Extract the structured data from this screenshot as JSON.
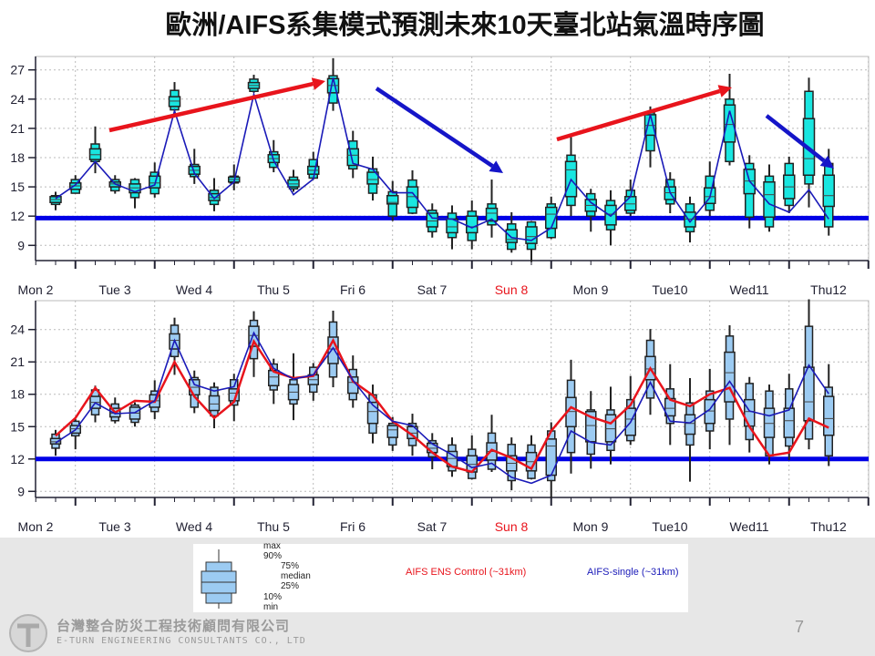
{
  "title": "歐洲/AIFS系集模式預測未來10天臺北站氣溫時序圖",
  "colors": {
    "ens_box_top": "#19e6e0",
    "ens_box_bottom": "#9ccbf2",
    "control": "#e8141c",
    "single": "#1a1ab8",
    "reference": "#0000e6",
    "weekend_label": "#e8141c"
  },
  "chart_data": [
    {
      "type": "boxplot",
      "title": "",
      "x_tick_labels": [
        "Mon 2",
        "Tue 3",
        "Wed 4",
        "Thu 5",
        "Fri 6",
        "Sat 7",
        "Sun 8",
        "Mon 9",
        "Tue10",
        "Wed11",
        "Thu12"
      ],
      "x_step": "6-hourly",
      "y_ticks": [
        9,
        12,
        15,
        18,
        21,
        24,
        27
      ],
      "ylim": [
        7.5,
        28.5
      ],
      "grid": true,
      "reference_line": 11.8,
      "box_order": [
        "min",
        "p10",
        "p25",
        "median",
        "p75",
        "p90",
        "max"
      ],
      "boxes": [
        [
          12.6,
          13.2,
          13.4,
          13.7,
          14.0,
          14.1,
          14.5
        ],
        [
          14.3,
          14.35,
          14.75,
          15.1,
          15.4,
          15.75,
          16.2
        ],
        [
          16.4,
          17.6,
          17.8,
          18.3,
          18.9,
          19.4,
          21.2
        ],
        [
          14.3,
          14.6,
          15.0,
          15.3,
          15.5,
          15.75,
          16.2
        ],
        [
          12.8,
          13.9,
          14.4,
          14.9,
          15.3,
          15.75,
          15.9
        ],
        [
          13.9,
          14.3,
          14.9,
          15.4,
          16.1,
          16.5,
          17.5
        ],
        [
          22.8,
          22.9,
          23.25,
          23.8,
          24.25,
          24.9,
          25.75
        ],
        [
          15.3,
          16.05,
          16.3,
          16.7,
          17.1,
          17.3,
          18.9
        ],
        [
          12.5,
          13.2,
          13.6,
          13.9,
          14.3,
          14.65,
          15.9
        ],
        [
          14.65,
          15.4,
          15.5,
          15.75,
          16.0,
          16.1,
          17.3
        ],
        [
          24.65,
          24.8,
          25.1,
          25.4,
          25.7,
          26.05,
          26.5
        ],
        [
          16.5,
          17.0,
          17.5,
          17.9,
          18.3,
          18.6,
          19.8
        ],
        [
          14.5,
          14.8,
          15.0,
          15.3,
          15.7,
          16.0,
          16.75
        ],
        [
          15.75,
          15.9,
          16.3,
          16.7,
          17.1,
          17.8,
          18.6
        ],
        [
          22.8,
          23.6,
          24.65,
          25.4,
          26.1,
          26.4,
          28.2
        ],
        [
          15.9,
          16.85,
          17.2,
          18.25,
          18.9,
          19.7,
          20.75
        ],
        [
          13.6,
          14.35,
          15.3,
          15.75,
          16.5,
          16.85,
          18.1
        ],
        [
          11.5,
          12.0,
          13.25,
          13.4,
          14.1,
          14.5,
          15.6
        ],
        [
          12.2,
          12.3,
          12.9,
          14.0,
          15.0,
          15.7,
          16.7
        ],
        [
          9.8,
          10.4,
          10.9,
          11.5,
          12.3,
          12.6,
          13.3
        ],
        [
          8.6,
          9.8,
          10.3,
          10.9,
          11.7,
          12.3,
          13.1
        ],
        [
          8.6,
          9.5,
          10.3,
          10.9,
          12.0,
          12.5,
          13.6
        ],
        [
          9.8,
          11.1,
          11.5,
          12.3,
          12.8,
          13.25,
          15.75
        ],
        [
          8.25,
          8.6,
          9.3,
          9.6,
          10.6,
          11.2,
          12.4
        ],
        [
          7.3,
          8.6,
          9.2,
          9.9,
          10.9,
          11.4,
          11.5
        ],
        [
          9.65,
          9.8,
          10.75,
          12.2,
          12.9,
          13.25,
          14.0
        ],
        [
          12.0,
          13.1,
          14.0,
          16.75,
          17.6,
          18.25,
          20.1
        ],
        [
          10.4,
          12.0,
          12.5,
          13.1,
          13.7,
          14.3,
          14.8
        ],
        [
          9.0,
          10.6,
          11.1,
          12.2,
          13.1,
          13.6,
          14.65
        ],
        [
          12.0,
          12.3,
          12.6,
          13.25,
          14.0,
          14.65,
          15.75
        ],
        [
          17.0,
          18.7,
          20.3,
          21.3,
          22.4,
          22.6,
          23.25
        ],
        [
          12.3,
          13.25,
          13.7,
          14.4,
          15.0,
          15.75,
          16.5
        ],
        [
          9.3,
          10.4,
          10.9,
          11.7,
          12.4,
          13.25,
          14.0
        ],
        [
          12.0,
          12.6,
          13.3,
          14.0,
          14.9,
          16.1,
          17.6
        ],
        [
          17.2,
          17.6,
          19.6,
          21.4,
          23.4,
          24.0,
          26.6
        ],
        [
          10.75,
          11.9,
          14.3,
          15.6,
          16.8,
          17.4,
          18.25
        ],
        [
          10.4,
          10.9,
          11.9,
          14.2,
          15.5,
          16.1,
          17.3
        ],
        [
          12.3,
          13.1,
          13.8,
          15.0,
          16.2,
          17.4,
          18.1
        ],
        [
          12.9,
          15.3,
          16.2,
          17.9,
          22.0,
          24.8,
          26.2
        ],
        [
          10.0,
          10.9,
          13.0,
          14.1,
          16.2,
          17.4,
          18.9
        ]
      ],
      "series": [
        {
          "key": "single",
          "values": [
            13.8,
            15.2,
            17.6,
            15.3,
            14.5,
            15.2,
            22.8,
            16.4,
            13.8,
            15.5,
            24.5,
            17.7,
            14.2,
            15.8,
            26.2,
            17.4,
            16.8,
            14.4,
            14.4,
            11.8,
            11.7,
            10.8,
            11.7,
            9.8,
            9.5,
            10.8,
            15.75,
            13.4,
            12.0,
            14.0,
            22.4,
            14.4,
            11.4,
            13.9,
            22.8,
            15.6,
            13.25,
            12.4,
            14.7,
            11.7
          ]
        }
      ],
      "annotations": [
        "trend-up",
        "trend-down",
        "trend-up",
        "trend-down"
      ]
    },
    {
      "type": "boxplot",
      "title": "",
      "x_tick_labels": [
        "Mon 2",
        "Tue 3",
        "Wed 4",
        "Thu 5",
        "Fri 6",
        "Sat 7",
        "Sun 8",
        "Mon 9",
        "Tue10",
        "Wed11",
        "Thu12"
      ],
      "x_step": "6-hourly",
      "y_ticks": [
        9,
        12,
        15,
        18,
        21,
        24
      ],
      "ylim": [
        8.3,
        26.8
      ],
      "grid": true,
      "reference_line": 12,
      "box_order": [
        "min",
        "p10",
        "p25",
        "median",
        "p75",
        "p90",
        "max"
      ],
      "boxes": [
        [
          12.3,
          13.0,
          13.4,
          13.6,
          13.9,
          14.3,
          14.7
        ],
        [
          12.9,
          14.15,
          14.4,
          14.8,
          15.1,
          15.5,
          15.7
        ],
        [
          15.4,
          16.1,
          16.7,
          17.25,
          17.8,
          18.4,
          18.8
        ],
        [
          15.3,
          15.55,
          15.9,
          16.25,
          16.7,
          17.1,
          17.7
        ],
        [
          15.0,
          15.4,
          15.7,
          16.25,
          16.8,
          17.0,
          17.25
        ],
        [
          15.7,
          16.4,
          16.8,
          17.4,
          17.95,
          18.3,
          19.3
        ],
        [
          19.8,
          21.5,
          22.2,
          23.0,
          23.6,
          24.4,
          25.1
        ],
        [
          16.25,
          16.8,
          17.95,
          18.65,
          19.35,
          19.55,
          20.2
        ],
        [
          14.85,
          16.0,
          16.5,
          17.1,
          17.85,
          18.65,
          19.1
        ],
        [
          15.5,
          17.0,
          17.4,
          18.1,
          18.5,
          19.35,
          19.9
        ],
        [
          19.6,
          21.3,
          22.45,
          23.45,
          24.3,
          24.85,
          25.7
        ],
        [
          17.1,
          18.4,
          18.8,
          19.6,
          20.2,
          20.8,
          21.3
        ],
        [
          15.6,
          17.1,
          17.5,
          18.2,
          18.9,
          19.35,
          21.8
        ],
        [
          17.4,
          18.2,
          18.9,
          19.35,
          19.8,
          20.5,
          20.9
        ],
        [
          18.65,
          19.6,
          20.85,
          22.2,
          23.3,
          24.7,
          25.75
        ],
        [
          16.75,
          17.5,
          18.1,
          19.1,
          19.6,
          20.3,
          21.6
        ],
        [
          13.45,
          14.4,
          15.3,
          16.4,
          17.25,
          17.95,
          18.9
        ],
        [
          12.75,
          13.3,
          14.0,
          14.7,
          15.1,
          15.3,
          15.9
        ],
        [
          12.3,
          13.25,
          13.9,
          14.4,
          15.0,
          15.3,
          16.2
        ],
        [
          11.05,
          12.2,
          12.6,
          13.0,
          13.45,
          13.7,
          14.4
        ],
        [
          10.35,
          10.9,
          11.3,
          12.05,
          12.7,
          13.3,
          14.0
        ],
        [
          10.1,
          10.2,
          10.8,
          11.5,
          12.3,
          12.9,
          14.2
        ],
        [
          10.8,
          11.05,
          11.9,
          12.7,
          13.5,
          14.4,
          16.1
        ],
        [
          9.1,
          10.0,
          10.9,
          11.6,
          12.3,
          13.35,
          14.0
        ],
        [
          10.1,
          10.2,
          10.9,
          11.75,
          12.6,
          13.3,
          14.2
        ],
        [
          8.4,
          10.0,
          10.5,
          13.2,
          13.85,
          14.6,
          15.4
        ],
        [
          10.65,
          12.6,
          15.0,
          16.4,
          17.7,
          19.3,
          21.2
        ],
        [
          11.1,
          12.45,
          13.6,
          15.1,
          16.4,
          16.55,
          18.3
        ],
        [
          11.5,
          12.8,
          13.6,
          14.8,
          16.1,
          16.55,
          18.7
        ],
        [
          13.3,
          13.7,
          14.2,
          15.7,
          16.7,
          17.5,
          19.7
        ],
        [
          16.1,
          17.65,
          19.35,
          20.35,
          21.5,
          23.0,
          24.05
        ],
        [
          13.3,
          15.3,
          16.0,
          16.7,
          17.6,
          18.5,
          20.8
        ],
        [
          9.9,
          13.3,
          14.3,
          15.3,
          16.1,
          17.2,
          19.5
        ],
        [
          12.9,
          14.6,
          15.3,
          16.45,
          17.5,
          18.3,
          20.35
        ],
        [
          13.3,
          15.7,
          17.3,
          20.0,
          21.9,
          23.4,
          24.4
        ],
        [
          12.6,
          13.8,
          15.05,
          16.4,
          17.5,
          19.0,
          19.6
        ],
        [
          11.5,
          12.3,
          14.0,
          15.3,
          16.7,
          18.3,
          18.9
        ],
        [
          11.9,
          13.2,
          14.0,
          15.55,
          16.7,
          18.5,
          19.9
        ],
        [
          12.9,
          13.85,
          15.55,
          17.3,
          20.5,
          24.3,
          26.8
        ],
        [
          11.35,
          12.3,
          14.2,
          15.75,
          17.8,
          18.65,
          20.8
        ]
      ],
      "series": [
        {
          "key": "control",
          "name": "AIFS ENS Control (~31km)",
          "values": [
            14.15,
            15.8,
            18.6,
            16.3,
            17.4,
            17.3,
            21.0,
            17.8,
            15.8,
            17.3,
            22.9,
            20.1,
            19.5,
            19.7,
            23.0,
            19.2,
            17.9,
            15.5,
            14.2,
            12.6,
            11.3,
            10.8,
            12.85,
            12.1,
            11.1,
            14.6,
            16.8,
            15.9,
            15.3,
            17.0,
            20.4,
            17.5,
            16.9,
            18.0,
            18.6,
            15.0,
            12.3,
            12.6,
            15.75,
            14.9
          ]
        },
        {
          "key": "single",
          "name": "AIFS-single (~31km)",
          "values": [
            13.5,
            14.7,
            17.2,
            16.2,
            16.3,
            17.4,
            23.0,
            18.9,
            18.3,
            18.7,
            23.7,
            20.4,
            19.4,
            19.8,
            22.3,
            19.3,
            17.0,
            15.5,
            15.1,
            13.4,
            12.4,
            11.2,
            11.6,
            10.3,
            9.75,
            10.5,
            14.6,
            13.55,
            13.3,
            15.4,
            19.1,
            15.5,
            15.35,
            16.6,
            19.2,
            16.45,
            16.0,
            16.55,
            20.7,
            18.05
          ]
        }
      ]
    }
  ],
  "legend": {
    "box_labels": {
      "max": "max",
      "p90": "90%",
      "p75": "75%",
      "median": "median",
      "p25": "25%",
      "p10": "10%",
      "min": "min"
    },
    "control": "AIFS ENS Control (~31km)",
    "single": "AIFS-single (~31km)"
  },
  "footer": {
    "company_cn": "台灣整合防災工程技術顧問有限公司",
    "company_en": "E-TURN ENGINEERING CONSULTANTS CO., LTD",
    "page_number": "7"
  }
}
